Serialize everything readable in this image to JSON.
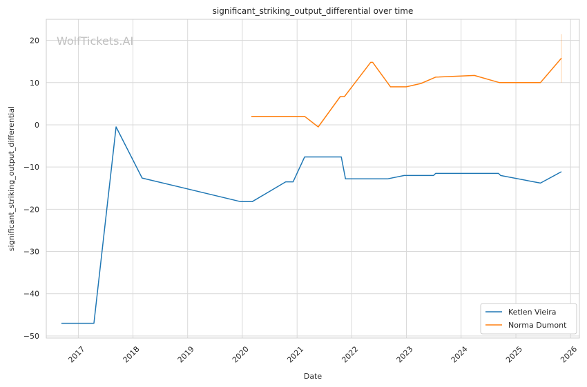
{
  "chart_data": {
    "type": "line",
    "title": "significant_striking_output_differential over time",
    "xlabel": "Date",
    "ylabel": "significant_striking_output_differential",
    "watermark": "WolfTickets.AI",
    "xlim": [
      "2016-06-01",
      "2026-03-01"
    ],
    "ylim": [
      -50.5,
      25
    ],
    "x_ticks": [
      "2017",
      "2018",
      "2019",
      "2020",
      "2021",
      "2022",
      "2023",
      "2024",
      "2025",
      "2026"
    ],
    "y_ticks": [
      20,
      10,
      0,
      -10,
      -20,
      -30,
      -40,
      -50
    ],
    "y_tick_labels": [
      "20",
      "10",
      "0",
      "−10",
      "−20",
      "−30",
      "−40",
      "−50"
    ],
    "grid": true,
    "legend_position": "bottom-right",
    "series": [
      {
        "name": "Ketlen Vieira",
        "color": "#1f77b4",
        "points": [
          [
            "2016-09-10",
            -47
          ],
          [
            "2017-04-15",
            -47
          ],
          [
            "2017-09-10",
            -0.5
          ],
          [
            "2018-03-03",
            -12.6
          ],
          [
            "2019-12-21",
            -18.2
          ],
          [
            "2020-03-07",
            -18.2
          ],
          [
            "2020-10-17",
            -13.5
          ],
          [
            "2020-12-05",
            -13.5
          ],
          [
            "2021-02-20",
            -7.6
          ],
          [
            "2021-10-23",
            -7.6
          ],
          [
            "2021-11-20",
            -12.8
          ],
          [
            "2022-08-27",
            -12.8
          ],
          [
            "2022-12-17",
            -12.0
          ],
          [
            "2023-07-01",
            -12.0
          ],
          [
            "2023-07-15",
            -11.5
          ],
          [
            "2024-09-07",
            -11.5
          ],
          [
            "2024-09-21",
            -12.0
          ],
          [
            "2025-06-14",
            -13.8
          ],
          [
            "2025-11-01",
            -11.1
          ]
        ]
      },
      {
        "name": "Norma Dumont",
        "color": "#ff7f0e",
        "points": [
          [
            "2020-03-01",
            2
          ],
          [
            "2021-02-20",
            2
          ],
          [
            "2021-05-22",
            -0.5
          ],
          [
            "2021-10-16",
            6.7
          ],
          [
            "2021-11-13",
            6.7
          ],
          [
            "2022-05-07",
            14.8
          ],
          [
            "2022-05-21",
            14.8
          ],
          [
            "2022-09-17",
            9.0
          ],
          [
            "2022-12-31",
            9.0
          ],
          [
            "2023-04-08",
            9.8
          ],
          [
            "2023-07-15",
            11.3
          ],
          [
            "2024-03-30",
            11.7
          ],
          [
            "2024-09-14",
            10.0
          ],
          [
            "2025-06-14",
            10.0
          ],
          [
            "2025-11-01",
            15.8
          ]
        ],
        "error_bar": {
          "x": "2025-11-01",
          "low": 10,
          "high": 21.5
        }
      }
    ]
  }
}
